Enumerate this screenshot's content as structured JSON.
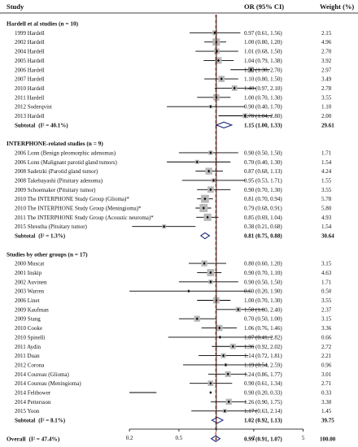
{
  "header": {
    "study": "Study",
    "or": "OR (95% CI)",
    "weight": "Weight (%)"
  },
  "chart_data": {
    "type": "forest",
    "scale": "log",
    "xlim": [
      0.15,
      7
    ],
    "ticks": [
      0.2,
      0.5,
      1,
      2,
      5
    ],
    "null_value": 1,
    "overall_line": 0.99,
    "groups": [
      {
        "title": "Hardell et al studies (n = 10)",
        "studies": [
          {
            "label": "1999 Hardell",
            "or": 0.97,
            "lo": 0.61,
            "hi": 1.56,
            "ci": "0.97 (0.61, 1.56)",
            "weight": "2.15",
            "w": 2.15
          },
          {
            "label": "2002 Hardell",
            "or": 1.0,
            "lo": 0.8,
            "hi": 1.2,
            "ci": "1.00 (0.80, 1.20)",
            "weight": "4.96",
            "w": 4.96
          },
          {
            "label": "2004 Hardell",
            "or": 1.01,
            "lo": 0.68,
            "hi": 1.5,
            "ci": "1.01 (0.68, 1.50)",
            "weight": "2.70",
            "w": 2.7
          },
          {
            "label": "2005 Hardell",
            "or": 1.04,
            "lo": 0.79,
            "hi": 1.38,
            "ci": "1.04 (0.79, 1.38)",
            "weight": "3.92",
            "w": 3.92
          },
          {
            "label": "2006 Hardell",
            "or": 1.9,
            "lo": 1.3,
            "hi": 2.7,
            "ci": "1.90 (1.30, 2.70)",
            "weight": "2.97",
            "w": 2.97
          },
          {
            "label": "2007 Hardell",
            "or": 1.1,
            "lo": 0.8,
            "hi": 1.5,
            "ci": "1.10 (0.80, 1.50)",
            "weight": "3.49",
            "w": 3.49
          },
          {
            "label": "2010 Hardell",
            "or": 1.4,
            "lo": 0.97,
            "hi": 2.1,
            "ci": "1.40 (0.97, 2.10)",
            "weight": "2.78",
            "w": 2.78
          },
          {
            "label": "2011 Hardell",
            "or": 1.0,
            "lo": 0.7,
            "hi": 1.3,
            "ci": "1.00 (0.70, 1.30)",
            "weight": "3.55",
            "w": 3.55
          },
          {
            "label": "2012 Soderqvist",
            "or": 0.9,
            "lo": 0.4,
            "hi": 1.7,
            "ci": "0.90 (0.40, 1.70)",
            "weight": "1.10",
            "w": 1.1
          },
          {
            "label": "2013 Hardell",
            "or": 1.7,
            "lo": 1.04,
            "hi": 2.8,
            "ci": "1.70 (1.04, 2.80)",
            "weight": "2.00",
            "w": 2.0
          }
        ],
        "subtotal": {
          "label": "Subtotal",
          "het": "(I² = 40.1%)",
          "or": 1.15,
          "lo": 1.0,
          "hi": 1.33,
          "ci": "1.15 (1.00, 1.33)",
          "weight": "29.61"
        }
      },
      {
        "title": "INTERPHONE-related studies (n = 9)",
        "studies": [
          {
            "label": "2006 Lonn (Benign pleomorphic adenomas)",
            "or": 0.9,
            "lo": 0.5,
            "hi": 1.5,
            "ci": "0.90 (0.50, 1.50)",
            "weight": "1.71",
            "w": 1.71
          },
          {
            "label": "2006 Lonn (Malignant parotid gland tumors)",
            "or": 0.7,
            "lo": 0.4,
            "hi": 1.3,
            "ci": "0.70 (0.40, 1.30)",
            "weight": "1.54",
            "w": 1.54
          },
          {
            "label": "2008 Sadetzki (Parotid gland tumor)",
            "or": 0.87,
            "lo": 0.68,
            "hi": 1.13,
            "ci": "0.87 (0.68, 1.13)",
            "weight": "4.24",
            "w": 4.24
          },
          {
            "label": "2008 Takebayashi (Pituitary adenoma)",
            "or": 0.95,
            "lo": 0.53,
            "hi": 1.71,
            "ci": "0.95 (0.53, 1.71)",
            "weight": "1.55",
            "w": 1.55
          },
          {
            "label": "2009 Schoemaker (Pituitary tumor)",
            "or": 0.9,
            "lo": 0.7,
            "hi": 1.3,
            "ci": "0.90 (0.70, 1.30)",
            "weight": "3.55",
            "w": 3.55
          },
          {
            "label": "2010 The INTERPHONE Study Group (Glioma)*",
            "or": 0.81,
            "lo": 0.7,
            "hi": 0.94,
            "ci": "0.81 (0.70, 0.94)",
            "weight": "5.78",
            "w": 5.78
          },
          {
            "label": "2010 The INTERPHONE Study Group (Meningioma)*",
            "or": 0.79,
            "lo": 0.68,
            "hi": 0.91,
            "ci": "0.79 (0.68, 0.91)",
            "weight": "5.80",
            "w": 5.8
          },
          {
            "label": "2011 The INTERPHONE Study Group (Acoustic neuroma)*",
            "or": 0.85,
            "lo": 0.69,
            "hi": 1.04,
            "ci": "0.85 (0.69, 1.04)",
            "weight": "4.93",
            "w": 4.93
          },
          {
            "label": "2015 Shrestha (Pituitary tumor)",
            "or": 0.38,
            "lo": 0.21,
            "hi": 0.68,
            "ci": "0.38 (0.21, 0.68)",
            "weight": "1.54",
            "w": 1.54
          }
        ],
        "subtotal": {
          "label": "Subtotal",
          "het": "(I² = 1.3%)",
          "or": 0.81,
          "lo": 0.75,
          "hi": 0.88,
          "ci": "0.81 (0.75, 0.88)",
          "weight": "30.64"
        }
      },
      {
        "title": "Studies by other groups (n = 17)",
        "studies": [
          {
            "label": "2000 Muscat",
            "or": 0.8,
            "lo": 0.6,
            "hi": 1.2,
            "ci": "0.80 (0.60, 1.20)",
            "weight": "3.15",
            "w": 3.15
          },
          {
            "label": "2001 Inskip",
            "or": 0.9,
            "lo": 0.7,
            "hi": 1.1,
            "ci": "0.90 (0.70, 1.10)",
            "weight": "4.63",
            "w": 4.63
          },
          {
            "label": "2002 Auvinen",
            "or": 0.9,
            "lo": 0.5,
            "hi": 1.5,
            "ci": "0.90 (0.50, 1.50)",
            "weight": "1.71",
            "w": 1.71
          },
          {
            "label": "2003 Warren",
            "or": 0.6,
            "lo": 0.2,
            "hi": 1.9,
            "ci": "0.60 (0.20, 1.90)",
            "weight": "0.50",
            "w": 0.5
          },
          {
            "label": "2006 Linet",
            "or": 1.0,
            "lo": 0.7,
            "hi": 1.3,
            "ci": "1.00 (0.70, 1.30)",
            "weight": "3.55",
            "w": 3.55
          },
          {
            "label": "2009 Kaufman",
            "or": 1.5,
            "lo": 1.0,
            "hi": 2.4,
            "ci": "1.50 (1.00, 2.40)",
            "weight": "2.37",
            "w": 2.37
          },
          {
            "label": "2009 Stang",
            "or": 0.7,
            "lo": 0.5,
            "hi": 1.0,
            "ci": "0.70 (0.50, 1.00)",
            "weight": "3.15",
            "w": 3.15
          },
          {
            "label": "2010 Cooke",
            "or": 1.06,
            "lo": 0.76,
            "hi": 1.46,
            "ci": "1.06 (0.76, 1.46)",
            "weight": "3.36",
            "w": 3.36
          },
          {
            "label": "2010 Spinelli",
            "or": 1.07,
            "lo": 0.41,
            "hi": 2.82,
            "ci": "1.07 (0.41, 2.82)",
            "weight": "0.66",
            "w": 0.66
          },
          {
            "label": "2011 Aydin",
            "or": 1.36,
            "lo": 0.92,
            "hi": 2.02,
            "ci": "1.36 (0.92, 2.02)",
            "weight": "2.72",
            "w": 2.72
          },
          {
            "label": "2011 Duan",
            "or": 1.14,
            "lo": 0.72,
            "hi": 1.81,
            "ci": "1.14 (0.72, 1.81)",
            "weight": "2.21",
            "w": 2.21
          },
          {
            "label": "2012 Corona",
            "or": 1.19,
            "lo": 0.54,
            "hi": 2.59,
            "ci": "1.19 (0.54, 2.59)",
            "weight": "0.96",
            "w": 0.96
          },
          {
            "label": "2014 Coureau (Glioma)",
            "or": 1.24,
            "lo": 0.86,
            "hi": 1.77,
            "ci": "1.24 (0.86, 1.77)",
            "weight": "3.01",
            "w": 3.01
          },
          {
            "label": "2014 Coureau (Meningioma)",
            "or": 0.9,
            "lo": 0.61,
            "hi": 1.34,
            "ci": "0.90 (0.61, 1.34)",
            "weight": "2.71",
            "w": 2.71
          },
          {
            "label": "2014 Feltbower",
            "or": 0.9,
            "lo": 0.2,
            "hi": 0.33,
            "ci": "0.90 (0.20, 0.33)",
            "weight": "0.33",
            "w": 0.33
          },
          {
            "label": "2014 Pettersson",
            "or": 1.26,
            "lo": 0.9,
            "hi": 1.75,
            "ci": "1.26 (0.90, 1.75)",
            "weight": "3.30",
            "w": 3.3
          },
          {
            "label": "2015 Yoon",
            "or": 1.17,
            "lo": 0.63,
            "hi": 2.14,
            "ci": "1.17 (0.63, 2.14)",
            "weight": "1.45",
            "w": 1.45
          }
        ],
        "subtotal": {
          "label": "Subtotal",
          "het": "(I² = 8.1%)",
          "or": 1.02,
          "lo": 0.92,
          "hi": 1.13,
          "ci": "1.02 (0.92, 1.13)",
          "weight": "39.75"
        }
      }
    ],
    "overall": {
      "label": "Overall",
      "het": "(I² = 47.4%)",
      "or": 0.99,
      "lo": 0.91,
      "hi": 1.07,
      "ci": "0.99 (0.91, 1.07)",
      "weight": "100.00"
    },
    "colors": {
      "box": "#b9b9b9",
      "line": "#000000",
      "diamond": "#1f2a7a",
      "overall_line": "#b02020"
    }
  }
}
